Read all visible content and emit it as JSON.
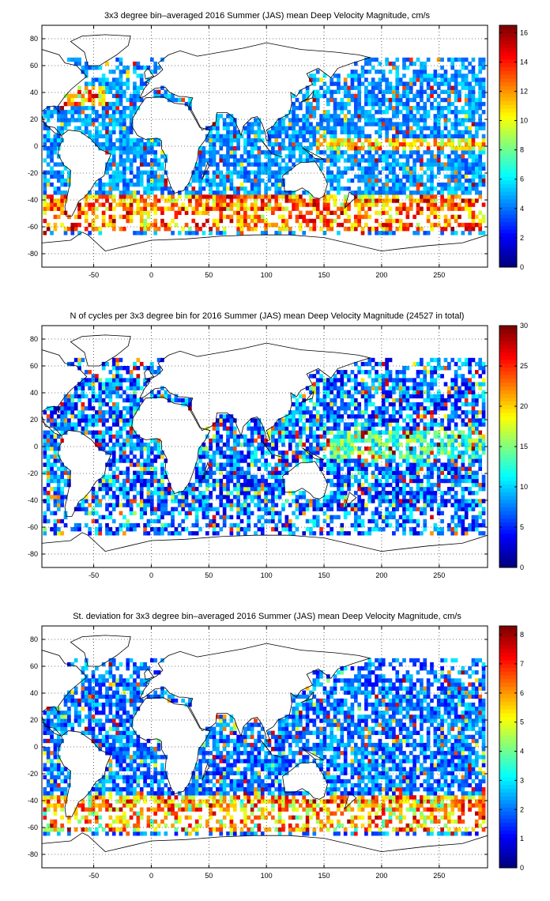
{
  "chart_data": [
    {
      "type": "heatmap",
      "title": "3x3 degree bin–averaged 2016 Summer (JAS) mean Deep Velocity Magnitude, cm/s",
      "xlim": [
        -95,
        292
      ],
      "ylim": [
        -90,
        90
      ],
      "xticks": [
        "-50",
        "0",
        "50",
        "100",
        "150",
        "200",
        "250"
      ],
      "xtick_values": [
        -50,
        0,
        50,
        100,
        150,
        200,
        250
      ],
      "yticks": [
        "80",
        "60",
        "40",
        "20",
        "0",
        "-20",
        "-40",
        "-60",
        "-80"
      ],
      "ytick_values": [
        80,
        60,
        40,
        20,
        0,
        -20,
        -40,
        -60,
        -80
      ],
      "colorbar_ticks": [
        "16",
        "14",
        "12",
        "10",
        "8",
        "6",
        "4",
        "2",
        "0"
      ],
      "colorbar_tick_values": [
        16,
        14,
        12,
        10,
        8,
        6,
        4,
        2,
        0
      ],
      "colorbar_range": [
        0,
        16.5
      ],
      "colormap": "jet",
      "bin_size_deg": 3,
      "grid": true
    },
    {
      "type": "heatmap",
      "title": "N of cycles per 3x3 degree bin for 2016 Summer (JAS) mean Deep Velocity Magnitude (24527 in total)",
      "xlim": [
        -95,
        292
      ],
      "ylim": [
        -90,
        90
      ],
      "xticks": [
        "-50",
        "0",
        "50",
        "100",
        "150",
        "200",
        "250"
      ],
      "xtick_values": [
        -50,
        0,
        50,
        100,
        150,
        200,
        250
      ],
      "yticks": [
        "80",
        "60",
        "40",
        "20",
        "0",
        "-20",
        "-40",
        "-60",
        "-80"
      ],
      "ytick_values": [
        80,
        60,
        40,
        20,
        0,
        -20,
        -40,
        -60,
        -80
      ],
      "colorbar_ticks": [
        "30",
        "25",
        "20",
        "15",
        "10",
        "5",
        "0"
      ],
      "colorbar_tick_values": [
        30,
        25,
        20,
        15,
        10,
        5,
        0
      ],
      "colorbar_range": [
        0,
        30
      ],
      "colormap": "jet",
      "bin_size_deg": 3,
      "grid": true
    },
    {
      "type": "heatmap",
      "title": "St. deviation for 3x3 degree bin–averaged 2016 Summer (JAS) mean Deep Velocity Magnitude, cm/s",
      "xlim": [
        -95,
        292
      ],
      "ylim": [
        -90,
        90
      ],
      "xticks": [
        "-50",
        "0",
        "50",
        "100",
        "150",
        "200",
        "250"
      ],
      "xtick_values": [
        -50,
        0,
        50,
        100,
        150,
        200,
        250
      ],
      "yticks": [
        "80",
        "60",
        "40",
        "20",
        "0",
        "-20",
        "-40",
        "-60",
        "-80"
      ],
      "ytick_values": [
        80,
        60,
        40,
        20,
        0,
        -20,
        -40,
        -60,
        -80
      ],
      "colorbar_ticks": [
        "8",
        "7",
        "6",
        "5",
        "4",
        "3",
        "2",
        "1",
        "0"
      ],
      "colorbar_tick_values": [
        8,
        7,
        6,
        5,
        4,
        3,
        2,
        1,
        0
      ],
      "colorbar_range": [
        0,
        8.3
      ],
      "colormap": "jet",
      "bin_size_deg": 3,
      "grid": true
    }
  ]
}
